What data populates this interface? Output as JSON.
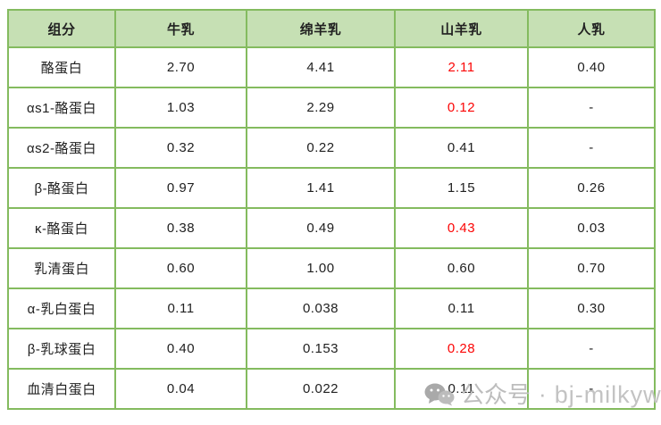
{
  "table": {
    "columns": [
      {
        "label": "组分"
      },
      {
        "label": "牛乳"
      },
      {
        "label": "绵羊乳"
      },
      {
        "label": "山羊乳"
      },
      {
        "label": "人乳"
      }
    ],
    "rows": [
      {
        "label": "酪蛋白",
        "values": [
          "2.70",
          "4.41",
          "2.11",
          "0.40"
        ],
        "red_cols": [
          2
        ]
      },
      {
        "label": "αs1-酪蛋白",
        "values": [
          "1.03",
          "2.29",
          "0.12",
          "-"
        ],
        "red_cols": [
          2
        ]
      },
      {
        "label": "αs2-酪蛋白",
        "values": [
          "0.32",
          "0.22",
          "0.41",
          "-"
        ],
        "red_cols": []
      },
      {
        "label": "β-酪蛋白",
        "values": [
          "0.97",
          "1.41",
          "1.15",
          "0.26"
        ],
        "red_cols": []
      },
      {
        "label": "κ-酪蛋白",
        "values": [
          "0.38",
          "0.49",
          "0.43",
          "0.03"
        ],
        "red_cols": [
          2
        ]
      },
      {
        "label": "乳清蛋白",
        "values": [
          "0.60",
          "1.00",
          "0.60",
          "0.70"
        ],
        "red_cols": []
      },
      {
        "label": "α-乳白蛋白",
        "values": [
          "0.11",
          "0.038",
          "0.11",
          "0.30"
        ],
        "red_cols": []
      },
      {
        "label": "β-乳球蛋白",
        "values": [
          "0.40",
          "0.153",
          "0.28",
          "-"
        ],
        "red_cols": [
          2
        ]
      },
      {
        "label": "血清白蛋白",
        "values": [
          "0.04",
          "0.022",
          "0.11",
          "-"
        ],
        "red_cols": []
      }
    ]
  },
  "watermark": {
    "icon": "wechat-icon",
    "label": "公众号",
    "separator": "·",
    "handle": "bj-milkyway"
  },
  "colors": {
    "border_green": "#84bb5f",
    "header_fill": "#c6e0b4",
    "highlight_red": "#fb0505",
    "text": "#212121",
    "watermark_gray": "#bdbdbd"
  }
}
